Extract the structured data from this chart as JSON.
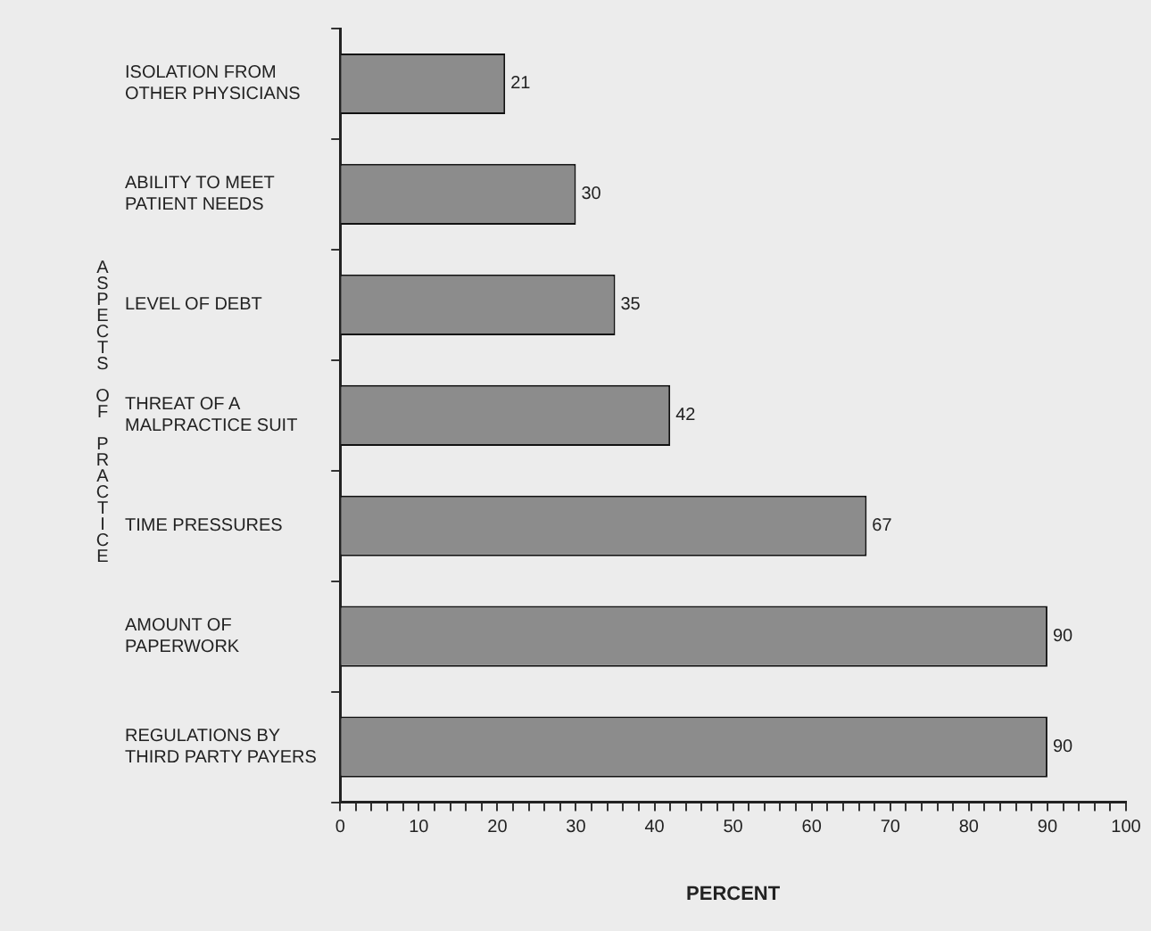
{
  "chart_data": {
    "type": "bar",
    "orientation": "horizontal",
    "xlabel": "PERCENT",
    "ylabel": "ASPECTS OF PRACTICE",
    "categories": [
      "ISOLATION FROM OTHER PHYSICIANS",
      "ABILITY TO MEET PATIENT NEEDS",
      "LEVEL OF DEBT",
      "THREAT OF A MALPRACTICE SUIT",
      "TIME PRESSURES",
      "AMOUNT OF PAPERWORK",
      "REGULATIONS BY THIRD PARTY PAYERS"
    ],
    "values": [
      21,
      30,
      35,
      42,
      67,
      90,
      90
    ],
    "color": "#8c8c8c",
    "data_labels": true,
    "xlim": [
      0,
      100
    ],
    "xticks": [
      0,
      {
        "value": 2,
        "label": null
      },
      {
        "value": 4,
        "label": null
      },
      {
        "value": 6,
        "label": null
      },
      {
        "value": 8,
        "label": null
      },
      10,
      {
        "value": 12,
        "label": null
      },
      {
        "value": 14,
        "label": null
      },
      {
        "value": 16,
        "label": null
      },
      {
        "value": 18,
        "label": null
      },
      20,
      {
        "value": 22,
        "label": null
      },
      {
        "value": 24,
        "label": null
      },
      {
        "value": 26,
        "label": null
      },
      {
        "value": 28,
        "label": null
      },
      30,
      {
        "value": 32,
        "label": null
      },
      {
        "value": 34,
        "label": null
      },
      {
        "value": 36,
        "label": null
      },
      {
        "value": 38,
        "label": null
      },
      40,
      {
        "value": 42,
        "label": null
      },
      {
        "value": 44,
        "label": null
      },
      {
        "value": 46,
        "label": null
      },
      {
        "value": 48,
        "label": null
      },
      50,
      {
        "value": 52,
        "label": null
      },
      {
        "value": 54,
        "label": null
      },
      {
        "value": 56,
        "label": null
      },
      {
        "value": 58,
        "label": null
      },
      60,
      {
        "value": 62,
        "label": null
      },
      {
        "value": 64,
        "label": null
      },
      {
        "value": 66,
        "label": null
      },
      {
        "value": 68,
        "label": null
      },
      70,
      {
        "value": 72,
        "label": null
      },
      {
        "value": 74,
        "label": null
      },
      {
        "value": 76,
        "label": null
      },
      {
        "value": 78,
        "label": null
      },
      80,
      {
        "value": 82,
        "label": null
      },
      {
        "value": 84,
        "label": null
      },
      {
        "value": 86,
        "label": null
      },
      {
        "value": 88,
        "label": null
      },
      90,
      {
        "value": 92,
        "label": null
      },
      {
        "value": 94,
        "label": null
      },
      {
        "value": 96,
        "label": null
      },
      {
        "value": 98,
        "label": null
      },
      100
    ],
    "grid": false,
    "legend": false
  }
}
